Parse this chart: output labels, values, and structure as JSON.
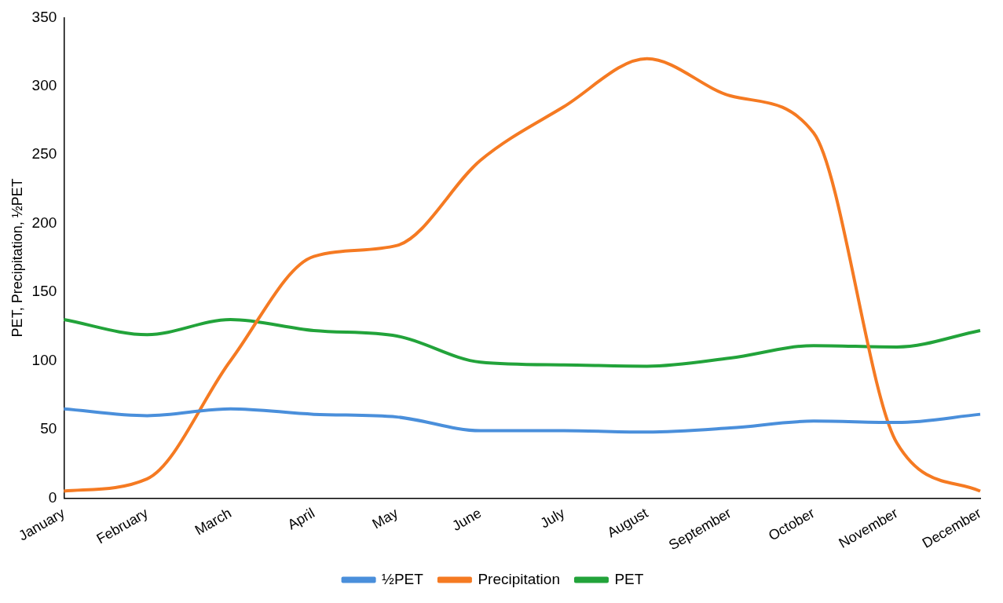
{
  "chart_data": {
    "type": "line",
    "ylabel": "PET, Precipitation, ½PET",
    "categories": [
      "January",
      "February",
      "March",
      "April",
      "May",
      "June",
      "July",
      "August",
      "September",
      "October",
      "November",
      "December"
    ],
    "series": [
      {
        "name": "½PET",
        "color": "#4a8fdb",
        "values": [
          65,
          60,
          65,
          61,
          59,
          49,
          49,
          48,
          51,
          56,
          55,
          61
        ]
      },
      {
        "name": "Precipitation",
        "color": "#f57a22",
        "values": [
          5,
          14,
          100,
          176,
          184,
          246,
          285,
          320,
          293,
          266,
          40,
          5
        ]
      },
      {
        "name": "PET",
        "color": "#22a33a",
        "values": [
          130,
          119,
          130,
          122,
          118,
          99,
          97,
          96,
          102,
          111,
          110,
          122
        ]
      }
    ],
    "ylim": [
      0,
      350
    ],
    "yticks": [
      0,
      50,
      100,
      150,
      200,
      250,
      300,
      350
    ],
    "grid": false,
    "legend": "bottom",
    "marker": "none",
    "line_style": "solid"
  }
}
